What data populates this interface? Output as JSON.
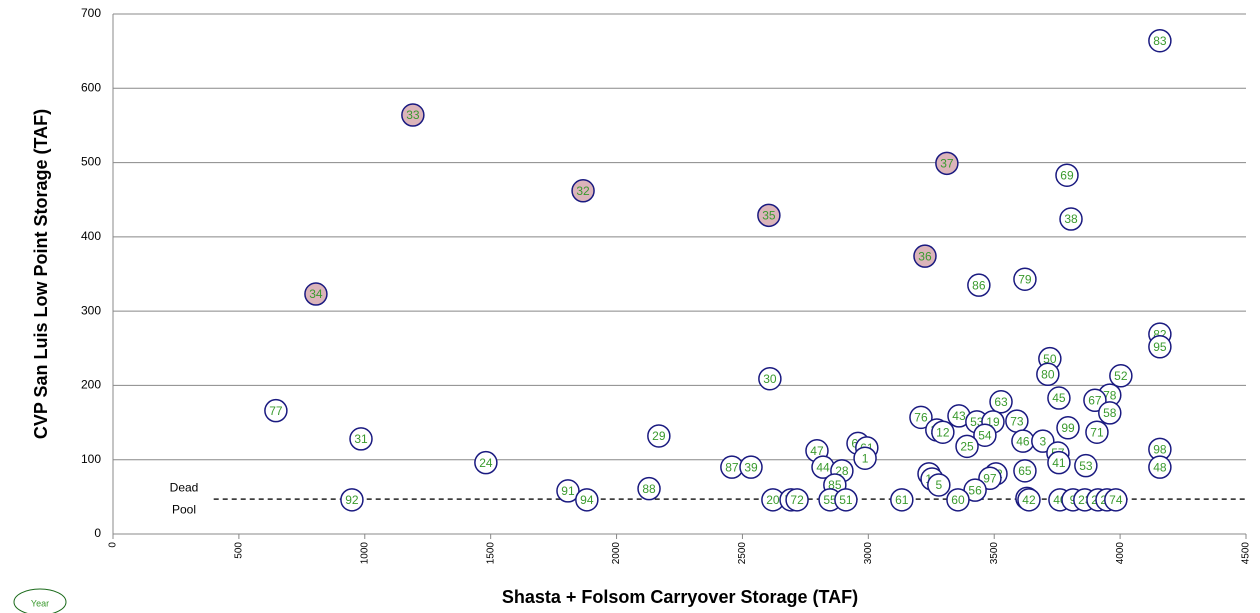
{
  "chart_data": {
    "type": "scatter",
    "x_label": "Shasta + Folsom Carryover Storage (TAF)",
    "y_label": "CVP San Luis Low Point Storage (TAF)",
    "xlim": [
      0,
      4500
    ],
    "xticks": [
      0,
      500,
      1000,
      1500,
      2000,
      2500,
      3000,
      3500,
      4000,
      4500
    ],
    "ylim": [
      0,
      700
    ],
    "yticks": [
      0,
      100,
      200,
      300,
      400,
      500,
      600,
      700
    ],
    "grid": true,
    "legend_label": "Year",
    "reference_line": {
      "value": 47,
      "label": [
        "Dead",
        "Pool"
      ]
    },
    "series": [
      {
        "color": "#1a1a80",
        "fill": "#dbb4ba",
        "x": [
          1191,
          1867,
          806,
          2605,
          3225,
          3312
        ],
        "values": [
          564,
          462,
          323,
          429,
          374,
          499
        ],
        "labels": [
          "33",
          "32",
          "34",
          "35",
          "36",
          "37"
        ]
      },
      {
        "color": "#1a1a80",
        "fill": "#ffffff",
        "x": [
          4158,
          3789,
          3805,
          3622,
          3439,
          4158,
          4158,
          3721,
          3713,
          4003,
          2609,
          3959,
          3527,
          3757,
          3900,
          647,
          3959,
          3209,
          3360,
          3431,
          3495,
          3590,
          3272,
          3296,
          3793,
          3908,
          3463,
          985,
          2168,
          3614,
          3693,
          3392,
          3753,
          3757,
          2959,
          2994,
          2987,
          4158,
          2796,
          1481,
          2458,
          2534,
          2820,
          2895,
          4158,
          3622,
          3864,
          3241,
          3253,
          3280,
          3507,
          3483,
          2867,
          1807,
          2129,
          3424,
          949,
          1882,
          2621,
          2693,
          2717,
          2848,
          2911,
          3133,
          3356,
          3630,
          3638,
          3761,
          3813,
          3860,
          3912,
          3948,
          3983
        ],
        "values": [
          664,
          483,
          424,
          343,
          335,
          269,
          252,
          236,
          215,
          213,
          209,
          187,
          178,
          183,
          180,
          166,
          163,
          157,
          159,
          151,
          151,
          152,
          140,
          137,
          143,
          137,
          133,
          128,
          132,
          125,
          125,
          118,
          109,
          96,
          122,
          116,
          102,
          114,
          112,
          96,
          90,
          90,
          90,
          85,
          90,
          85,
          92,
          81,
          74,
          66,
          81,
          75,
          66,
          58,
          61,
          59,
          46,
          46,
          46,
          46,
          46,
          46,
          46,
          46,
          46,
          48,
          46,
          46,
          46,
          46,
          46,
          46,
          46
        ],
        "labels": [
          "83",
          "69",
          "38",
          "79",
          "86",
          "82",
          "95",
          "50",
          "80",
          "52",
          "30",
          "78",
          "63",
          "45",
          "67",
          "77",
          "58",
          "76",
          "43",
          "53",
          "19",
          "73",
          "13",
          "12",
          "99",
          "71",
          "54",
          "31",
          "29",
          "46",
          "3",
          "25",
          "57",
          "41",
          "64",
          "61",
          "1",
          "98",
          "47",
          "24",
          "87",
          "39",
          "44",
          "28",
          "48",
          "65",
          "53",
          "10",
          "18",
          "5",
          "62",
          "97",
          "85",
          "91",
          "88",
          "56",
          "92",
          "94",
          "20",
          "70",
          "72",
          "55",
          "51",
          "61",
          "60",
          "72",
          "42",
          "40",
          "9",
          "23",
          "26",
          "27",
          "74"
        ]
      }
    ]
  }
}
